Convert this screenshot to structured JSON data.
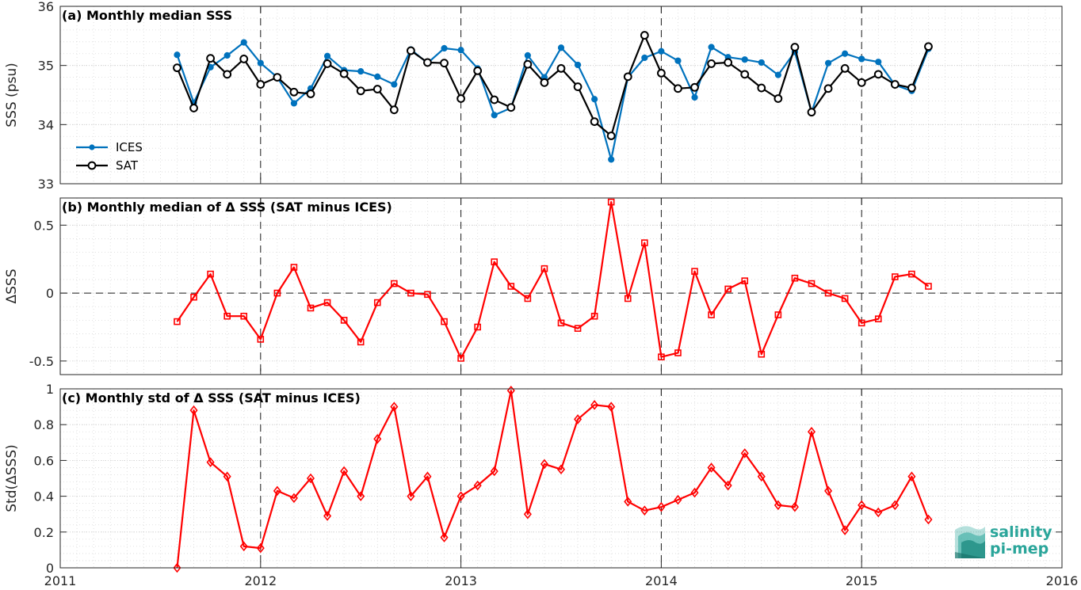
{
  "logo": {
    "line1": "salinity",
    "line2": "pi-mep",
    "color": "#2aa59a"
  },
  "chart_data": [
    {
      "type": "line",
      "title": "(a) Monthly median SSS",
      "xlabel": "",
      "ylabel": "SSS (psu)",
      "xlim": [
        "2011-01",
        "2016-01"
      ],
      "ylim": [
        33,
        36
      ],
      "yticks": [
        33,
        34,
        35,
        36
      ],
      "xticks": [
        "2011",
        "2012",
        "2013",
        "2014",
        "2015",
        "2016"
      ],
      "grid": true,
      "legend_position": "bottom-left",
      "x": [
        "2011-08",
        "2011-09",
        "2011-10",
        "2011-11",
        "2011-12",
        "2012-01",
        "2012-02",
        "2012-03",
        "2012-04",
        "2012-05",
        "2012-06",
        "2012-07",
        "2012-08",
        "2012-09",
        "2012-10",
        "2012-11",
        "2012-12",
        "2013-01",
        "2013-02",
        "2013-03",
        "2013-04",
        "2013-05",
        "2013-06",
        "2013-07",
        "2013-08",
        "2013-09",
        "2013-10",
        "2013-11",
        "2013-12",
        "2014-01",
        "2014-02",
        "2014-03",
        "2014-04",
        "2014-05",
        "2014-06",
        "2014-07",
        "2014-08",
        "2014-09",
        "2014-10",
        "2014-11",
        "2014-12",
        "2015-01",
        "2015-02",
        "2015-03",
        "2015-04",
        "2015-05"
      ],
      "series": [
        {
          "name": "ICES",
          "color": "#0072BD",
          "marker": "dot",
          "values": [
            35.18,
            34.37,
            34.97,
            35.17,
            35.39,
            35.04,
            34.8,
            34.36,
            34.61,
            35.16,
            34.92,
            34.9,
            34.81,
            34.68,
            35.27,
            35.04,
            35.29,
            35.26,
            34.95,
            34.16,
            34.28,
            35.17,
            34.8,
            35.3,
            35.01,
            34.43,
            33.41,
            34.8,
            35.13,
            35.24,
            35.08,
            34.46,
            35.31,
            35.14,
            35.1,
            35.05,
            34.84,
            35.23,
            34.21,
            35.04,
            35.2,
            35.11,
            35.06,
            34.67,
            34.57,
            35.28
          ]
        },
        {
          "name": "SAT",
          "color": "#000000",
          "marker": "circle",
          "values": [
            34.96,
            34.28,
            35.12,
            34.85,
            35.11,
            34.68,
            34.8,
            34.55,
            34.52,
            35.03,
            34.86,
            34.57,
            34.6,
            34.25,
            35.25,
            35.05,
            35.04,
            34.44,
            34.91,
            34.42,
            34.29,
            35.02,
            34.71,
            34.95,
            34.64,
            34.05,
            33.81,
            34.81,
            35.51,
            34.87,
            34.61,
            34.63,
            35.03,
            35.05,
            34.85,
            34.62,
            34.44,
            35.31,
            34.21,
            34.61,
            34.95,
            34.71,
            34.85,
            34.68,
            34.62,
            35.32
          ]
        }
      ]
    },
    {
      "type": "line",
      "title": "(b) Monthly median of Δ SSS (SAT minus ICES)",
      "xlabel": "",
      "ylabel": "ΔSSS",
      "xlim": [
        "2011-01",
        "2016-01"
      ],
      "ylim": [
        -0.6,
        0.7
      ],
      "yticks": [
        -0.5,
        0,
        0.5
      ],
      "ytick_labels": [
        "-0.5",
        "0",
        "0.5"
      ],
      "grid": true,
      "reference_line": 0,
      "x": [
        "2011-08",
        "2011-09",
        "2011-10",
        "2011-11",
        "2011-12",
        "2012-01",
        "2012-02",
        "2012-03",
        "2012-04",
        "2012-05",
        "2012-06",
        "2012-07",
        "2012-08",
        "2012-09",
        "2012-10",
        "2012-11",
        "2012-12",
        "2013-01",
        "2013-02",
        "2013-03",
        "2013-04",
        "2013-05",
        "2013-06",
        "2013-07",
        "2013-08",
        "2013-09",
        "2013-10",
        "2013-11",
        "2013-12",
        "2014-01",
        "2014-02",
        "2014-03",
        "2014-04",
        "2014-05",
        "2014-06",
        "2014-07",
        "2014-08",
        "2014-09",
        "2014-10",
        "2014-11",
        "2014-12",
        "2015-01",
        "2015-02",
        "2015-03",
        "2015-04",
        "2015-05"
      ],
      "series": [
        {
          "name": "",
          "color": "#ff0000",
          "marker": "square",
          "values": [
            -0.21,
            -0.03,
            0.14,
            -0.17,
            -0.17,
            -0.34,
            0.0,
            0.19,
            -0.11,
            -0.07,
            -0.2,
            -0.36,
            -0.07,
            0.07,
            0.0,
            -0.01,
            -0.21,
            -0.48,
            -0.25,
            0.23,
            0.05,
            -0.04,
            0.18,
            -0.22,
            -0.26,
            -0.17,
            0.67,
            -0.04,
            0.37,
            -0.47,
            -0.44,
            0.16,
            -0.16,
            0.03,
            0.09,
            -0.45,
            -0.16,
            0.11,
            0.07,
            0.0,
            -0.04,
            -0.22,
            -0.19,
            0.12,
            0.14,
            0.05
          ]
        }
      ]
    },
    {
      "type": "line",
      "title": "(c) Monthly std of Δ SSS (SAT minus ICES)",
      "xlabel": "",
      "ylabel": "Std(ΔSSS)",
      "xlim": [
        "2011-01",
        "2016-01"
      ],
      "ylim": [
        0,
        1
      ],
      "yticks": [
        0,
        0.2,
        0.4,
        0.6,
        0.8,
        1
      ],
      "ytick_labels": [
        "0",
        "0.2",
        "0.4",
        "0.6",
        "0.8",
        "1"
      ],
      "xticks": [
        "2011",
        "2012",
        "2013",
        "2014",
        "2015",
        "2016"
      ],
      "grid": true,
      "x": [
        "2011-08",
        "2011-09",
        "2011-10",
        "2011-11",
        "2011-12",
        "2012-01",
        "2012-02",
        "2012-03",
        "2012-04",
        "2012-05",
        "2012-06",
        "2012-07",
        "2012-08",
        "2012-09",
        "2012-10",
        "2012-11",
        "2012-12",
        "2013-01",
        "2013-02",
        "2013-03",
        "2013-04",
        "2013-05",
        "2013-06",
        "2013-07",
        "2013-08",
        "2013-09",
        "2013-10",
        "2013-11",
        "2013-12",
        "2014-01",
        "2014-02",
        "2014-03",
        "2014-04",
        "2014-05",
        "2014-06",
        "2014-07",
        "2014-08",
        "2014-09",
        "2014-10",
        "2014-11",
        "2014-12",
        "2015-01",
        "2015-02",
        "2015-03",
        "2015-04",
        "2015-05"
      ],
      "series": [
        {
          "name": "",
          "color": "#ff0000",
          "marker": "diamond",
          "values": [
            0.0,
            0.88,
            0.59,
            0.51,
            0.12,
            0.11,
            0.43,
            0.39,
            0.5,
            0.29,
            0.54,
            0.4,
            0.72,
            0.9,
            0.4,
            0.51,
            0.17,
            0.4,
            0.46,
            0.54,
            0.99,
            0.3,
            0.58,
            0.55,
            0.83,
            0.91,
            0.9,
            0.37,
            0.32,
            0.34,
            0.38,
            0.42,
            0.56,
            0.46,
            0.64,
            0.51,
            0.35,
            0.34,
            0.76,
            0.43,
            0.21,
            0.35,
            0.31,
            0.35,
            0.51,
            0.27
          ]
        }
      ]
    }
  ]
}
